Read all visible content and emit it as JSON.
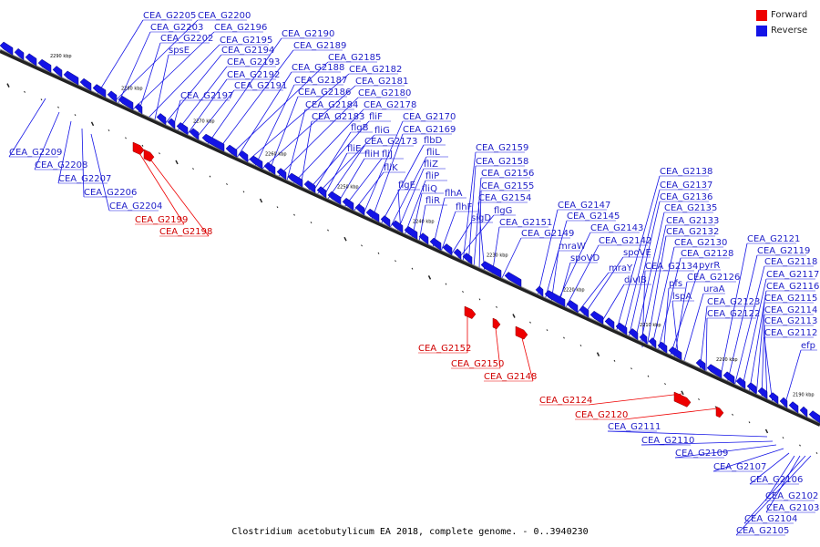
{
  "legend": {
    "forward_label": "Forward",
    "reverse_label": "Reverse",
    "forward_color": "#ee0000",
    "reverse_color": "#1414e6"
  },
  "caption": "Clostridium acetobutylicum EA 2018, complete genome. - 0..3940230",
  "kbp_labels": [
    "2290 kbp",
    "2280 kbp",
    "2270 kbp",
    "2260 kbp",
    "2250 kbp",
    "2240 kbp",
    "2230 kbp",
    "2220 kbp",
    "2210 kbp",
    "2200 kbp",
    "2190 kbp"
  ],
  "reverse_labels": [
    "CEA_G2205",
    "CEA_G2200",
    "CEA_G2203",
    "CEA_G2196",
    "CEA_G2202",
    "CEA_G2195",
    "spsE",
    "CEA_G2194",
    "CEA_G2193",
    "CEA_G2192",
    "CEA_G2197",
    "CEA_G2191",
    "CEA_G2190",
    "CEA_G2189",
    "CEA_G2185",
    "CEA_G2188",
    "CEA_G2182",
    "CEA_G2187",
    "CEA_G2181",
    "CEA_G2186",
    "CEA_G2180",
    "CEA_G2184",
    "CEA_G2178",
    "CEA_G2183",
    "fliF",
    "fliG",
    "flgB",
    "CEA_G2173",
    "fliE",
    "fliH",
    "fliJ",
    "fliK",
    "CEA_G2170",
    "CEA_G2169",
    "flbD",
    "fliL",
    "fliZ",
    "fliP",
    "fliQ",
    "flgE",
    "fliR",
    "flhA",
    "flhF",
    "sigD",
    "flgG",
    "CEA_G2159",
    "CEA_G2158",
    "CEA_G2156",
    "CEA_G2155",
    "CEA_G2154",
    "CEA_G2151",
    "CEA_G2149",
    "CEA_G2147",
    "CEA_G2145",
    "CEA_G2143",
    "mraW",
    "CEA_G2142",
    "spoVD",
    "spoVE",
    "mraY",
    "divIB",
    "CEA_G2138",
    "CEA_G2137",
    "CEA_G2136",
    "CEA_G2135",
    "CEA_G2133",
    "CEA_G2132",
    "CEA_G2130",
    "CEA_G2134",
    "CEA_G2128",
    "pfs",
    "pyrR",
    "CEA_G2126",
    "lspA",
    "uraA",
    "CEA_G2123",
    "CEA_G2122",
    "CEA_G2121",
    "CEA_G2119",
    "CEA_G2118",
    "CEA_G2117",
    "CEA_G2116",
    "CEA_G2115",
    "CEA_G2114",
    "CEA_G2113",
    "CEA_G2112",
    "efp",
    "CEA_G2209",
    "CEA_G2208",
    "CEA_G2207",
    "CEA_G2206",
    "CEA_G2204",
    "CEA_G2111",
    "CEA_G2110",
    "CEA_G2109",
    "CEA_G2107",
    "CEA_G2106",
    "CEA_G2102",
    "CEA_G2103",
    "CEA_G2104",
    "CEA_G2105"
  ],
  "forward_labels": [
    "CEA_G2199",
    "CEA_G2198",
    "CEA_G2152",
    "CEA_G2150",
    "CEA_G2148",
    "CEA_G2124",
    "CEA_G2120"
  ]
}
